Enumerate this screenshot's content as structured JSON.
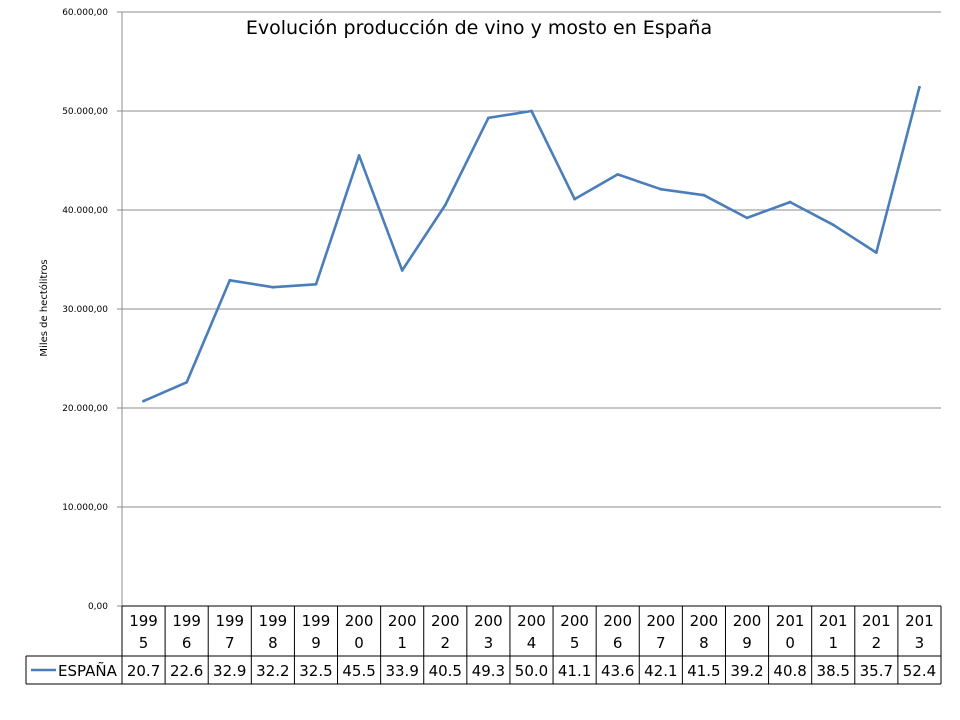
{
  "chart_data": {
    "type": "line",
    "title": "Evolución producción de vino y mosto en España",
    "ylabel": "Miles de hectólitros",
    "xlabel": "",
    "ylim": [
      0,
      60000
    ],
    "yticks": [
      "0,00",
      "10.000,00",
      "20.000,00",
      "30.000,00",
      "40.000,00",
      "50.000,00",
      "60.000,00"
    ],
    "grid": true,
    "legend_placement": "table",
    "categories": [
      [
        "199",
        "5"
      ],
      [
        "199",
        "6"
      ],
      [
        "199",
        "7"
      ],
      [
        "199",
        "8"
      ],
      [
        "199",
        "9"
      ],
      [
        "200",
        "0"
      ],
      [
        "200",
        "1"
      ],
      [
        "200",
        "2"
      ],
      [
        "200",
        "3"
      ],
      [
        "200",
        "4"
      ],
      [
        "200",
        "5"
      ],
      [
        "200",
        "6"
      ],
      [
        "200",
        "7"
      ],
      [
        "200",
        "8"
      ],
      [
        "200",
        "9"
      ],
      [
        "201",
        "0"
      ],
      [
        "201",
        "1"
      ],
      [
        "201",
        "2"
      ],
      [
        "201",
        "3"
      ]
    ],
    "series": [
      {
        "name": "ESPAÑA",
        "color": "#4a7ebb",
        "values": [
          20700,
          22600,
          32900,
          32200,
          32500,
          45500,
          33900,
          40500,
          49300,
          50000,
          41100,
          43600,
          42100,
          41500,
          39200,
          40800,
          38500,
          35700,
          52400
        ],
        "table_labels": [
          "20.7",
          "22.6",
          "32.9",
          "32.2",
          "32.5",
          "45.5",
          "33.9",
          "40.5",
          "49.3",
          "50.0",
          "41.1",
          "43.6",
          "42.1",
          "41.5",
          "39.2",
          "40.8",
          "38.5",
          "35.7",
          "52.4"
        ]
      }
    ]
  }
}
